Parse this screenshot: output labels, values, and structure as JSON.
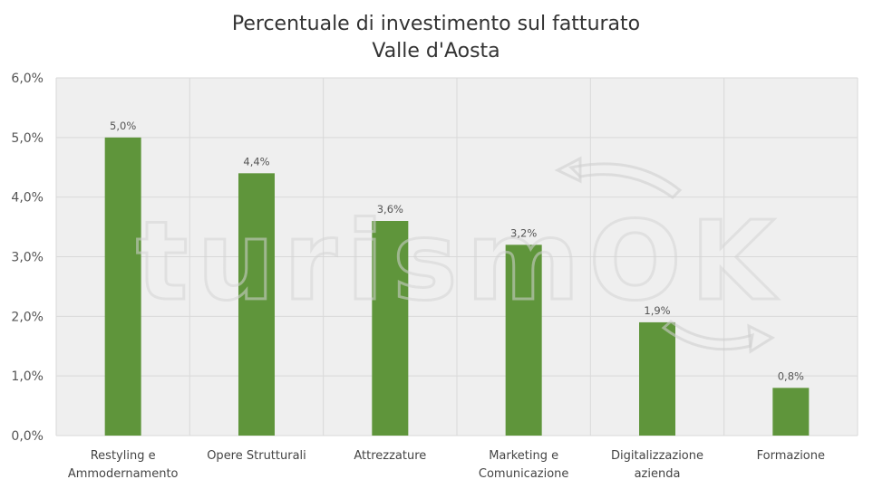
{
  "chart_data": {
    "type": "bar",
    "title": [
      "Percentuale di investimento sul fatturato",
      "Valle d'Aosta"
    ],
    "categories": [
      [
        "Restyling e",
        "Ammodernamento"
      ],
      [
        "Opere Strutturali"
      ],
      [
        "Attrezzature"
      ],
      [
        "Marketing e",
        "Comunicazione"
      ],
      [
        "Digitalizzazione",
        "azienda"
      ],
      [
        "Formazione"
      ]
    ],
    "values": [
      5.0,
      4.4,
      3.6,
      3.2,
      1.9,
      0.8
    ],
    "data_labels": [
      "5,0%",
      "4,4%",
      "3,6%",
      "3,2%",
      "1,9%",
      "0,8%"
    ],
    "ylim": [
      0,
      6
    ],
    "yticks": [
      "0,0%",
      "1,0%",
      "2,0%",
      "3,0%",
      "4,0%",
      "5,0%",
      "6,0%"
    ],
    "xlabel": "",
    "ylabel": "",
    "grid": true,
    "colors": {
      "bar": "#5f953b",
      "plot_bg": "#efefef",
      "grid": "#d9d9d9"
    }
  },
  "watermark": {
    "text": "turismOK"
  }
}
